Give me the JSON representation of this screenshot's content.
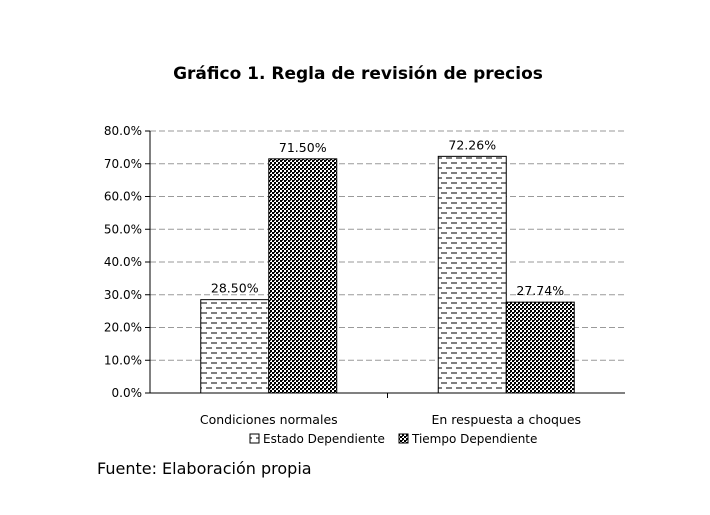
{
  "chart_data": {
    "type": "bar",
    "title": "Gráfico 1. Regla de revisión de precios",
    "categories": [
      "Condiciones normales",
      "En respuesta a choques"
    ],
    "series": [
      {
        "name": "Estado Dependiente",
        "values": [
          28.5,
          72.26
        ],
        "labels": [
          "28.50%",
          "72.26%"
        ],
        "pattern": "dashed-dots"
      },
      {
        "name": "Tiempo Dependiente",
        "values": [
          71.5,
          27.74
        ],
        "labels": [
          "71.50%",
          "27.74%"
        ],
        "pattern": "dense-check"
      }
    ],
    "ylim": [
      0,
      80
    ],
    "yticks": [
      "0.0%",
      "10.0%",
      "20.0%",
      "30.0%",
      "40.0%",
      "50.0%",
      "60.0%",
      "70.0%",
      "80.0%"
    ],
    "xlabel": "",
    "ylabel": "",
    "grid": "dashed horizontal",
    "legend_position": "bottom",
    "source": "Fuente: Elaboración propia"
  }
}
